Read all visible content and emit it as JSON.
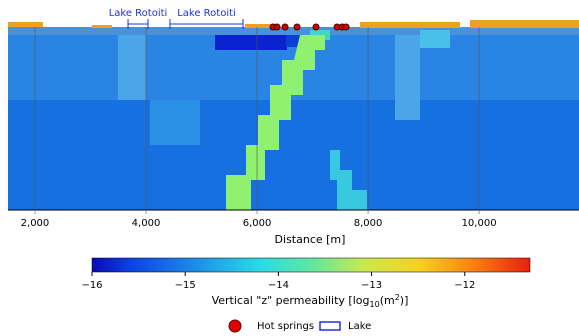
{
  "chart_data": {
    "type": "section",
    "xlabel": "Distance [m]",
    "xlim": [
      1514,
      11800
    ],
    "xticks": [
      {
        "value": 2000,
        "label": "2,000"
      },
      {
        "value": 4000,
        "label": "4,000"
      },
      {
        "value": 6000,
        "label": "6,000"
      },
      {
        "value": 8000,
        "label": "8,000"
      },
      {
        "value": 10000,
        "label": "10,000"
      }
    ],
    "lakes": [
      {
        "name": "Lake Rotoiti",
        "x": [
          3676,
          4036
        ]
      },
      {
        "name": "Lake Rotoiti",
        "x": [
          4432,
          5748
        ]
      }
    ],
    "hot_springs": {
      "x": [
        6288,
        6360,
        6505,
        6721,
        7063,
        7441,
        7532,
        7604
      ]
    },
    "colorbar": {
      "label": [
        "Vertical \"z\" permeability [log",
        "10",
        "(m",
        "2",
        ")]"
      ],
      "lim": [
        -16,
        -11.3
      ],
      "ticks": [
        {
          "value": -16,
          "label": "−16"
        },
        {
          "value": -15,
          "label": "−15"
        },
        {
          "value": -14,
          "label": "−14"
        },
        {
          "value": -13,
          "label": "−13"
        },
        {
          "value": -12,
          "label": "−12"
        }
      ]
    },
    "legend": [
      "Hot springs",
      "Lake"
    ]
  }
}
